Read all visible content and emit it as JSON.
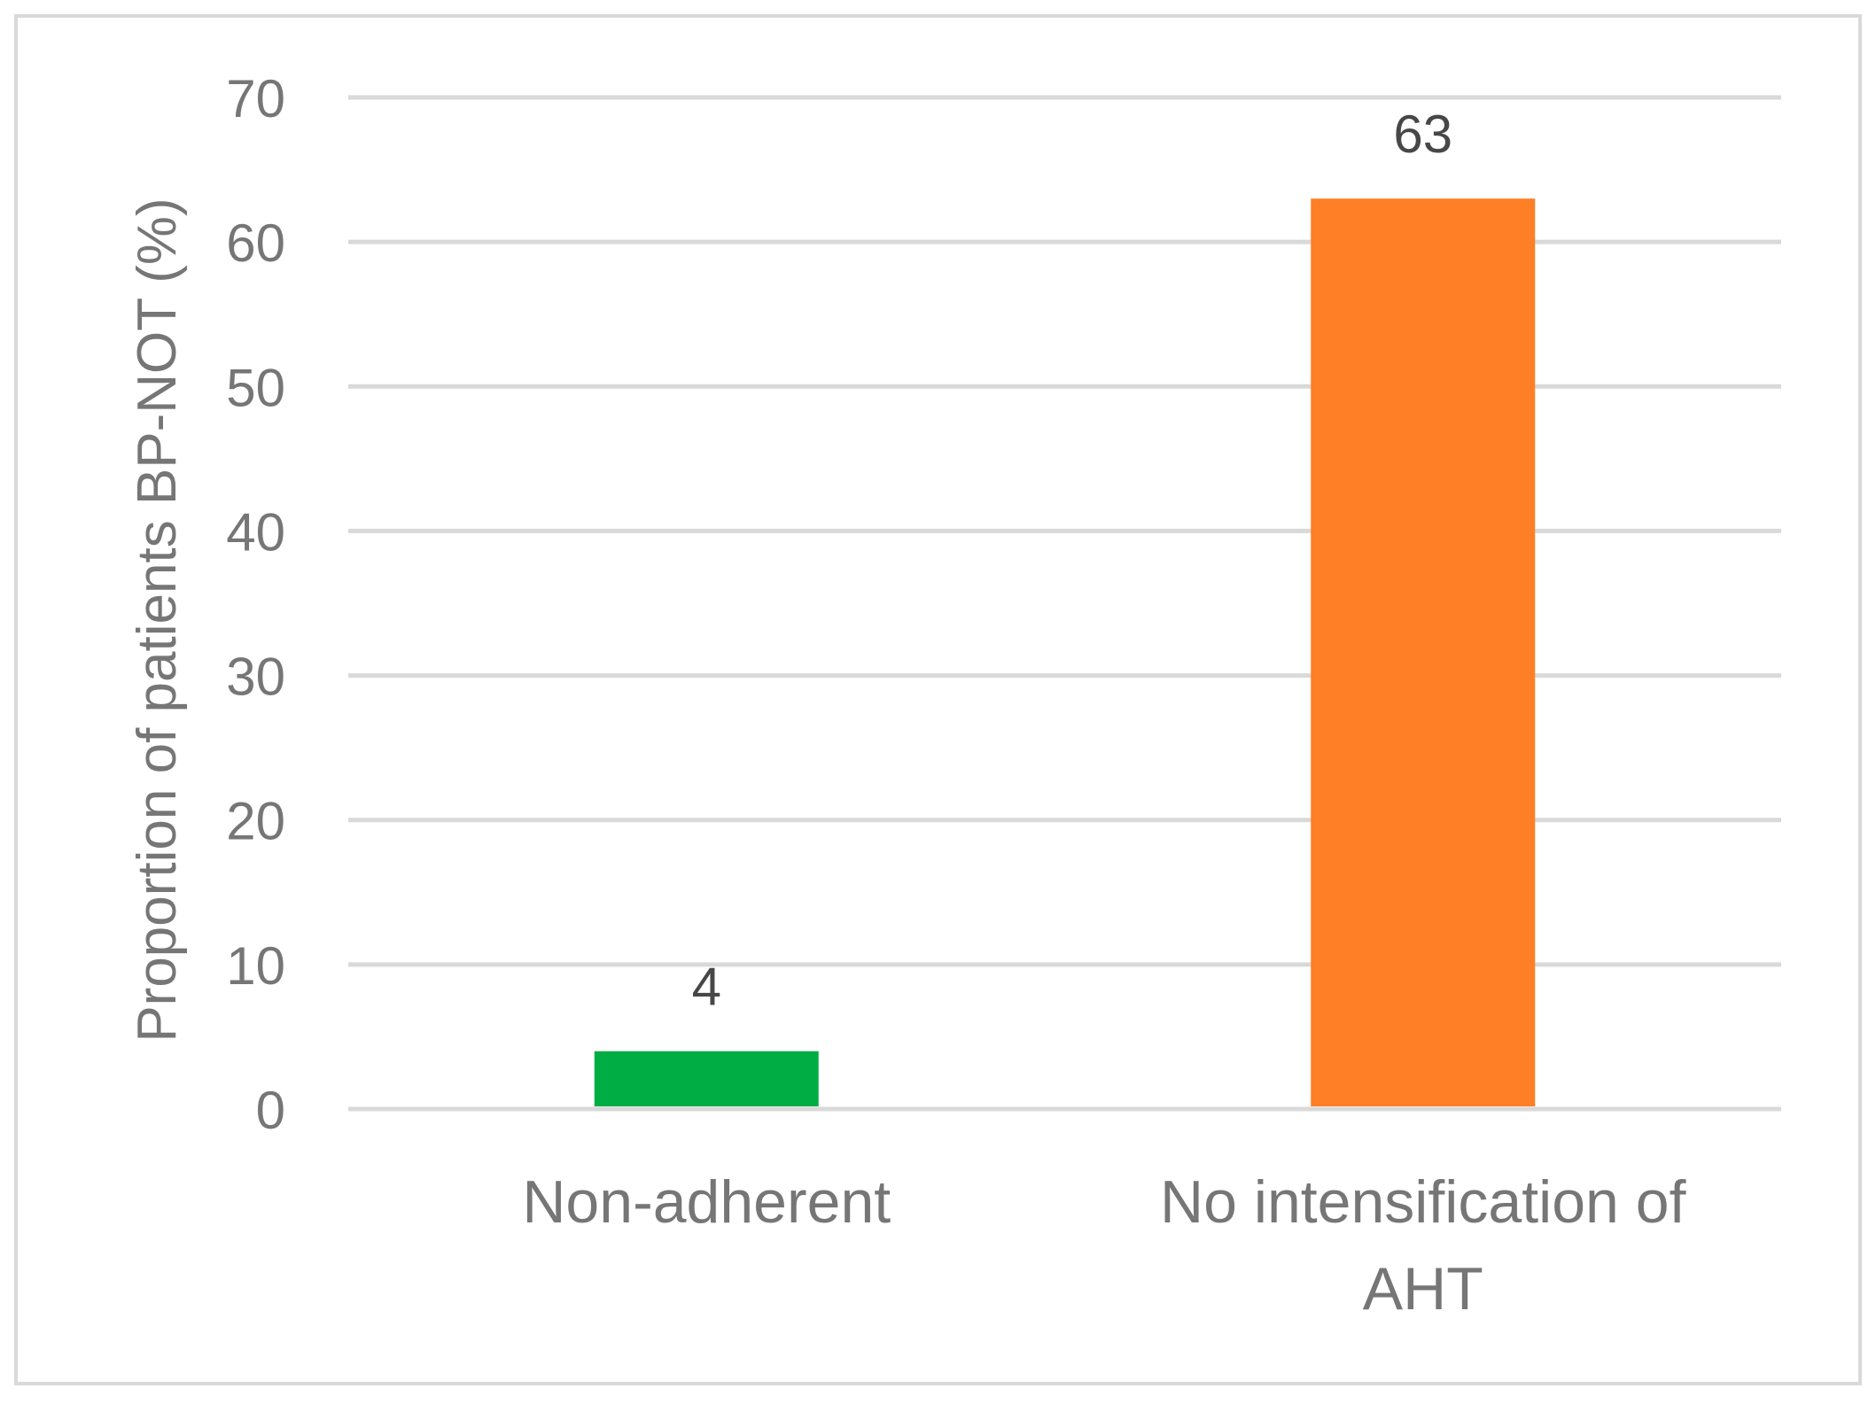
{
  "chart_data": {
    "type": "bar",
    "categories": [
      "Non-adherent",
      "No intensification of AHT"
    ],
    "category_label_lines": [
      [
        "Non-adherent"
      ],
      [
        "No intensification of",
        "AHT"
      ]
    ],
    "values": [
      4,
      63
    ],
    "data_labels": [
      "4",
      "63"
    ],
    "bar_colors": [
      "#00ad45",
      "#fe7f25"
    ],
    "ylabel": "Proportion of patients BP-NOT (%)",
    "xlabel": "",
    "ylim": [
      0,
      70
    ],
    "yticks": [
      0,
      10,
      20,
      30,
      40,
      50,
      60,
      70
    ],
    "grid": true,
    "legend": "none",
    "colors": {
      "gridline": "#d9d9d9",
      "tick_text": "#767676",
      "data_label_text": "#474747",
      "frame": "#d9d9d9"
    }
  }
}
